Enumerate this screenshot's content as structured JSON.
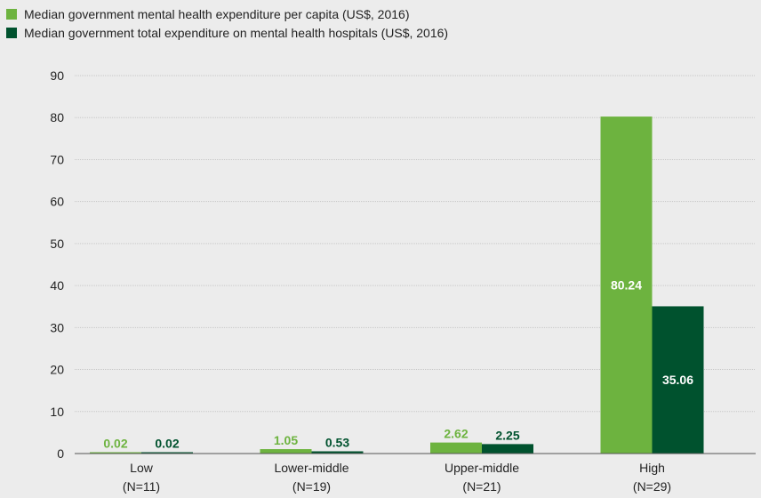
{
  "chart_data": {
    "type": "bar",
    "title": "",
    "xlabel": "",
    "ylabel": "",
    "ylim": [
      0,
      90
    ],
    "yticks": [
      0,
      10,
      20,
      30,
      40,
      50,
      60,
      70,
      80,
      90
    ],
    "grid": true,
    "legend_position": "top-left",
    "categories": [
      {
        "label": "Low",
        "sublabel": "(N=11)"
      },
      {
        "label": "Lower-middle",
        "sublabel": "(N=19)"
      },
      {
        "label": "Upper-middle",
        "sublabel": "(N=21)"
      },
      {
        "label": "High",
        "sublabel": "(N=29)"
      }
    ],
    "series": [
      {
        "name": "Median government mental health expenditure per capita (US$, 2016)",
        "color": "#6db33f",
        "values": [
          0.02,
          1.05,
          2.62,
          80.24
        ],
        "labels": [
          "0.02",
          "1.05",
          "2.62",
          "80.24"
        ]
      },
      {
        "name": "Median government total expenditure on mental health hospitals (US$, 2016)",
        "color": "#00522e",
        "values": [
          0.02,
          0.53,
          2.25,
          35.06
        ],
        "labels": [
          "0.02",
          "0.53",
          "2.25",
          "35.06"
        ]
      }
    ]
  }
}
